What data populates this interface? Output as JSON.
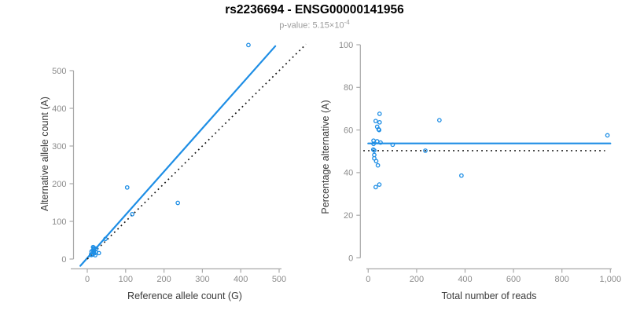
{
  "header": {
    "title": "rs2236694 - ENSG00000141956",
    "subtitle_prefix": "p-value: 5.15×10",
    "subtitle_exponent": "-4"
  },
  "colors": {
    "accent_blue": "#1E8EE5",
    "dotted_line_black": "#141414",
    "axis_line_gray": "#a9a9a9",
    "tick_label_gray": "#8c8c8c",
    "axis_title_gray": "#3a3a3a",
    "subtitle_gray": "#9b9b9b"
  },
  "chart_data": [
    {
      "type": "scatter",
      "title": "rs2236694 - ENSG00000141956",
      "xlabel": "Reference allele count (G)",
      "ylabel": "Alternative allele count (A)",
      "xlim": [
        0,
        500
      ],
      "ylim": [
        0,
        500
      ],
      "grid": "off",
      "xticks": [
        0,
        100,
        200,
        300,
        400,
        500
      ],
      "xtick_labels": [
        "0",
        "100",
        "200",
        "300",
        "400",
        "500"
      ],
      "yticks": [
        0,
        100,
        200,
        300,
        400,
        500
      ],
      "ytick_labels": [
        "0",
        "100",
        "200",
        "300",
        "400",
        "500"
      ],
      "points": [
        [
          15.2,
          31.8
        ],
        [
          11.1,
          19.9
        ],
        [
          17.1,
          29.9
        ],
        [
          14.2,
          22.8
        ],
        [
          17.1,
          25.9
        ],
        [
          18,
          27
        ],
        [
          9.9,
          12.1
        ],
        [
          16.8,
          20.2
        ],
        [
          23.4,
          27.6
        ],
        [
          10.2,
          11.8
        ],
        [
          47.4,
          53.6
        ],
        [
          10.3,
          10.7
        ],
        [
          12.4,
          12.6
        ],
        [
          12.9,
          12.1
        ],
        [
          13.3,
          11.7
        ],
        [
          18,
          15
        ],
        [
          22.6,
          17.4
        ],
        [
          20.7,
          10.3
        ],
        [
          30.2,
          15.8
        ],
        [
          104,
          190
        ],
        [
          117,
          119
        ],
        [
          236,
          149
        ],
        [
          420,
          568
        ]
      ],
      "lines": [
        {
          "name": "fit-line",
          "x1": -18,
          "y1": -18,
          "x2": 490,
          "y2": 565,
          "style": "solid"
        },
        {
          "name": "identity-line",
          "x1": 0,
          "y1": 0,
          "x2": 570,
          "y2": 570,
          "style": "dotted"
        }
      ]
    },
    {
      "type": "scatter",
      "title": "rs2236694 - ENSG00000141956",
      "xlabel": "Total number of reads",
      "ylabel": "Percentage alternative (A)",
      "xlim": [
        0,
        1000
      ],
      "ylim": [
        0,
        100
      ],
      "grid": "off",
      "xticks": [
        0,
        200,
        400,
        600,
        800,
        1000
      ],
      "xtick_labels": [
        "0",
        "200",
        "400",
        "600",
        "800",
        "1,000"
      ],
      "yticks": [
        0,
        20,
        40,
        60,
        80,
        100
      ],
      "ytick_labels": [
        "0",
        "20",
        "40",
        "60",
        "80",
        "100"
      ],
      "points": [
        [
          47,
          67.6
        ],
        [
          31,
          64.2
        ],
        [
          47,
          63.6
        ],
        [
          37,
          61.5
        ],
        [
          43,
          60.3
        ],
        [
          45,
          60
        ],
        [
          22,
          55
        ],
        [
          37,
          54.7
        ],
        [
          51,
          54.1
        ],
        [
          22,
          53.5
        ],
        [
          101,
          53.1
        ],
        [
          21,
          50.8
        ],
        [
          25,
          50.4
        ],
        [
          25,
          48.3
        ],
        [
          25,
          46.7
        ],
        [
          33,
          45.4
        ],
        [
          40,
          43.4
        ],
        [
          31,
          33.2
        ],
        [
          46,
          34.4
        ],
        [
          294,
          64.6
        ],
        [
          236,
          50.3
        ],
        [
          385,
          38.6
        ],
        [
          988,
          57.5
        ]
      ],
      "lines": [
        {
          "name": "mean-percentage-line",
          "x1": 0,
          "y1": 53.7,
          "x2": 1000,
          "y2": 53.7,
          "style": "solid"
        },
        {
          "name": "fifty-percent-line",
          "x1": -20,
          "y1": 50.3,
          "x2": 978,
          "y2": 50.3,
          "style": "dotted"
        }
      ]
    }
  ]
}
